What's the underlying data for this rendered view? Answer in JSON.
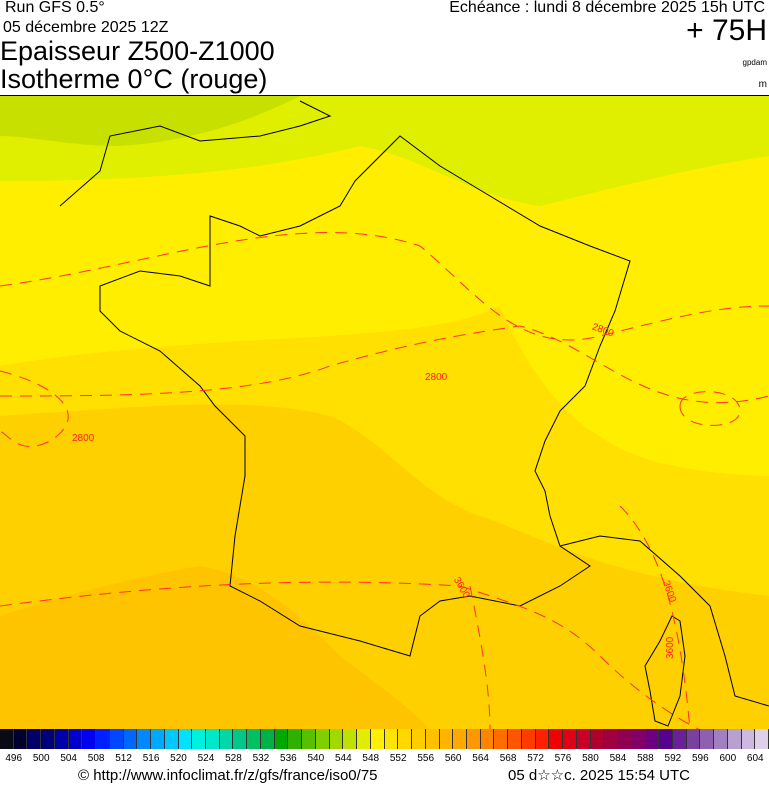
{
  "header": {
    "run": "Run GFS 0.5°",
    "run_date": "05 décembre 2025 12Z",
    "title_line1": "Epaisseur Z500-Z1000",
    "title_line2": "Isotherme 0°C (rouge)",
    "valid_time": "Echéance : lundi 8 décembre 2025 15h UTC",
    "lead_time": "+ 75H",
    "unit_thickness": "gpdam",
    "unit_isotherm": "m"
  },
  "map": {
    "isotherm_labels": [
      "2800",
      "2800",
      "2800",
      "3600",
      "3600",
      "3600"
    ],
    "isotherm_color": "#ff2020",
    "fill_colors": {
      "green": "#c8e000",
      "lime": "#e0ee00",
      "yellow": "#ffee00",
      "gold": "#ffe000",
      "amber": "#ffd000",
      "orange": "#ffc400"
    }
  },
  "colorbar": {
    "tick_labels": [
      "496",
      "500",
      "504",
      "508",
      "512",
      "516",
      "520",
      "524",
      "528",
      "532",
      "536",
      "540",
      "544",
      "548",
      "552",
      "556",
      "560",
      "564",
      "568",
      "572",
      "576",
      "580",
      "584",
      "588",
      "592",
      "596",
      "600",
      "604"
    ],
    "colors": [
      "#0a0a14",
      "#000030",
      "#000068",
      "#000078",
      "#0000a8",
      "#0000c8",
      "#0000f0",
      "#0020ff",
      "#0048ff",
      "#0068ff",
      "#0088ff",
      "#00a8ff",
      "#00c8ff",
      "#00e0ff",
      "#00f0e0",
      "#00e8c8",
      "#00d8a8",
      "#00c888",
      "#00c060",
      "#00b048",
      "#00a800",
      "#30b000",
      "#58c000",
      "#80d000",
      "#a0d800",
      "#c0e000",
      "#e0ec00",
      "#fff000",
      "#ffe400",
      "#ffd800",
      "#ffcc00",
      "#ffc000",
      "#ffb400",
      "#ffa800",
      "#ff9800",
      "#ff8400",
      "#ff6c00",
      "#ff5400",
      "#ff3c00",
      "#ff2000",
      "#f00000",
      "#e00018",
      "#c80028",
      "#b00030",
      "#a00040",
      "#900050",
      "#800068",
      "#6c0080",
      "#580090",
      "#6a2098",
      "#7a40a0",
      "#9060b0",
      "#a080c0",
      "#b8a0d0",
      "#ccb8e0",
      "#ddd0e8"
    ]
  },
  "footer": {
    "copyright": "© http://www.infoclimat.fr/z/gfs/france/iso0/75",
    "generated": "05 d☆☆c. 2025 15:54 UTC"
  }
}
